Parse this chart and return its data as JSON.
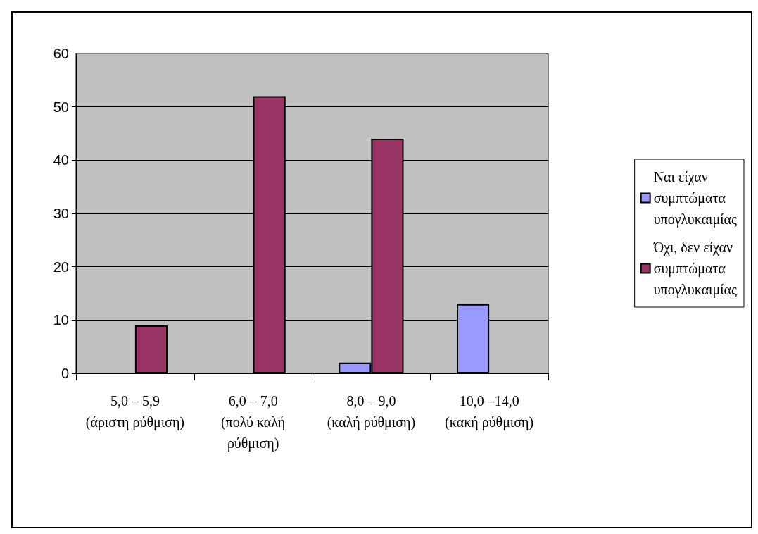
{
  "chart_data": {
    "type": "bar",
    "categories": [
      "5,0 – 5,9\n(άριστη ρύθμιση)",
      "6,0 – 7,0\n(πολύ καλή\nρύθμιση)",
      "8,0 – 9,0\n(καλή ρύθμιση)",
      "10,0 –14,0\n(κακή ρύθμιση)"
    ],
    "series": [
      {
        "name": "Ναι είχαν συμπτώματα υπογλυκαιμίας",
        "color": "#9999ff",
        "values": [
          null,
          null,
          2,
          13
        ]
      },
      {
        "name": "Όχι, δεν είχαν συμπτώματα υπογλυκαιμίας",
        "color": "#993366",
        "values": [
          9,
          52,
          44,
          null
        ]
      }
    ],
    "ylim": [
      0,
      60
    ],
    "yticks": [
      0,
      10,
      20,
      30,
      40,
      50,
      60
    ],
    "grid": "y",
    "legend": "right"
  }
}
